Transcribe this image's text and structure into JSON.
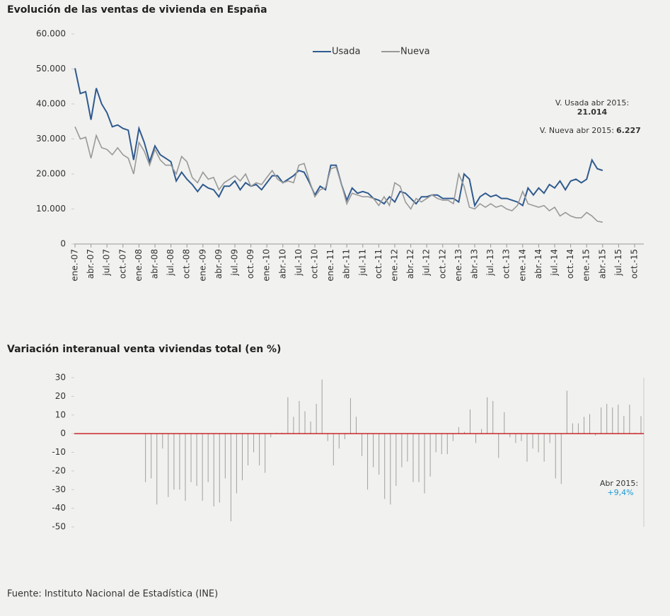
{
  "chart_data": [
    {
      "type": "line",
      "title": "Evolución de las ventas de vivienda en España",
      "categories": [
        "ene.-07",
        null,
        null,
        "abr.-07",
        null,
        null,
        "jul.-07",
        null,
        null,
        "oct.-07",
        null,
        null,
        "ene.-08",
        null,
        null,
        "abr.-08",
        null,
        null,
        "jul.-08",
        null,
        null,
        "oct.-08",
        null,
        null,
        "ene.-09",
        null,
        null,
        "abr.-09",
        null,
        null,
        "jul.-09",
        null,
        null,
        "oct.-09",
        null,
        null,
        "ene.-10",
        null,
        null,
        "abr.-10",
        null,
        null,
        "jul.-10",
        null,
        null,
        "oct.-10",
        null,
        null,
        "ene.-11",
        null,
        null,
        "abr.-11",
        null,
        null,
        "jul.-11",
        null,
        null,
        "oct.-11",
        null,
        null,
        "ene.-12",
        null,
        null,
        "abr.-12",
        null,
        null,
        "jul.-12",
        null,
        null,
        "oct.-12",
        null,
        null,
        "ene.-13",
        null,
        null,
        "abr.-13",
        null,
        null,
        "jul.-13",
        null,
        null,
        "oct.-13",
        null,
        null,
        "ene.-14",
        null,
        null,
        "abr.-14",
        null,
        null,
        "jul.-14",
        null,
        null,
        "oct.-14",
        null,
        null,
        "ene.-15",
        null,
        null,
        "abr.-15",
        null,
        null,
        "jul.-15",
        null,
        null,
        "oct.-15",
        null,
        null
      ],
      "series": [
        {
          "name": "Usada",
          "color": "#2f5a8f",
          "values": [
            50200,
            43000,
            43500,
            35500,
            44500,
            40000,
            37500,
            33500,
            34000,
            33000,
            32500,
            24000,
            33000,
            29000,
            23500,
            28000,
            25500,
            24500,
            23500,
            18000,
            20500,
            18500,
            17000,
            15000,
            17000,
            16000,
            15500,
            13500,
            16500,
            16500,
            18000,
            15500,
            17500,
            16500,
            17000,
            15500,
            17500,
            19500,
            19500,
            17500,
            18500,
            19500,
            21000,
            20500,
            17500,
            14000,
            16500,
            15500,
            22500,
            22500,
            17000,
            12500,
            16000,
            14500,
            15000,
            14500,
            13000,
            12500,
            11500,
            13500,
            12000,
            15000,
            14500,
            13000,
            11500,
            13500,
            13500,
            14000,
            14000,
            13000,
            13000,
            13000,
            12000,
            20000,
            18500,
            11000,
            13500,
            14500,
            13500,
            14000,
            13000,
            13000,
            12500,
            12000,
            11000,
            16000,
            14000,
            16000,
            14500,
            17000,
            16000,
            18000,
            15500,
            18000,
            18500,
            17500,
            18500,
            24000,
            21500,
            21014,
            null,
            null,
            null,
            null,
            null,
            null,
            null,
            null
          ]
        },
        {
          "name": "Nueva",
          "color": "#999999",
          "values": [
            33500,
            30000,
            30500,
            24500,
            31000,
            27500,
            27000,
            25500,
            27500,
            25500,
            24500,
            20000,
            29000,
            26500,
            22500,
            27000,
            24000,
            22500,
            22500,
            20000,
            25000,
            23500,
            19000,
            17500,
            20500,
            18500,
            19000,
            15500,
            17500,
            18500,
            19500,
            18000,
            20000,
            16500,
            17500,
            17000,
            19000,
            21000,
            18500,
            17500,
            18000,
            17500,
            22500,
            23000,
            18000,
            13500,
            15500,
            16000,
            21500,
            22000,
            17000,
            11500,
            14500,
            14000,
            13500,
            13500,
            13000,
            11000,
            13500,
            11000,
            17500,
            16500,
            12000,
            10000,
            13000,
            12000,
            13000,
            14000,
            13000,
            12500,
            12500,
            11500,
            20000,
            16500,
            10500,
            10000,
            11500,
            10500,
            11500,
            10500,
            11000,
            10000,
            9500,
            11000,
            15000,
            11500,
            11000,
            10500,
            11000,
            9500,
            10500,
            8000,
            9000,
            8000,
            7500,
            7500,
            9000,
            8000,
            6500,
            6227,
            null,
            null,
            null,
            null,
            null,
            null,
            null,
            null
          ]
        }
      ],
      "ylim": [
        0,
        60000
      ],
      "yticks": [
        0,
        {
          "value": 10000,
          "label": "10.000"
        },
        {
          "value": 20000,
          "label": "20.000"
        },
        {
          "value": 30000,
          "label": "30.000"
        },
        {
          "value": 40000,
          "label": "40.000"
        },
        {
          "value": 50000,
          "label": "50.000"
        },
        {
          "value": 60000,
          "label": "60.000"
        }
      ],
      "legend": "top",
      "annotations": [
        "V. Usada abr 2015:",
        "21.014",
        "V. Nueva abr 2015:",
        "6.227"
      ]
    },
    {
      "type": "bar",
      "title": "Variación interanual venta viviendas total (en %)",
      "color": "#a0a0a0",
      "zero_color": "#c00000",
      "values": [
        null,
        null,
        null,
        null,
        null,
        null,
        null,
        null,
        null,
        null,
        null,
        null,
        -26,
        -24,
        -38,
        -8,
        -34,
        -30,
        -30,
        -36,
        -26,
        -28,
        -36,
        -26,
        -39,
        -37,
        -24,
        -47,
        -32,
        -25,
        -17,
        -10,
        -17,
        -21,
        -2,
        0.5,
        0.5,
        19.5,
        9,
        17.5,
        12,
        6.5,
        16,
        29,
        -4,
        -17,
        -8,
        -3,
        19,
        9,
        -12,
        -30,
        -18,
        -22,
        -35,
        -38,
        -28,
        -18,
        -15,
        -26,
        -26,
        -32,
        -23,
        -10,
        -11,
        -11,
        -4,
        3.5,
        1,
        13,
        -5,
        2.5,
        19.5,
        17.5,
        -13,
        11.5,
        -2,
        -5,
        -4,
        -15,
        -8,
        -10,
        -15,
        -5,
        -24,
        -27,
        23,
        5.5,
        5.5,
        9,
        10.5,
        -1,
        14,
        16,
        14,
        15.5,
        9.5,
        15.5,
        0.5,
        9.4
      ],
      "ylim": [
        -50,
        30
      ],
      "yticks": [
        30,
        20,
        10,
        0,
        -10,
        -20,
        -30,
        -40,
        -50
      ],
      "annotations": [
        "Abr 2015:",
        "+9,4%"
      ]
    }
  ],
  "source": "Fuente: Instituto Nacional de Estadística (INE)"
}
